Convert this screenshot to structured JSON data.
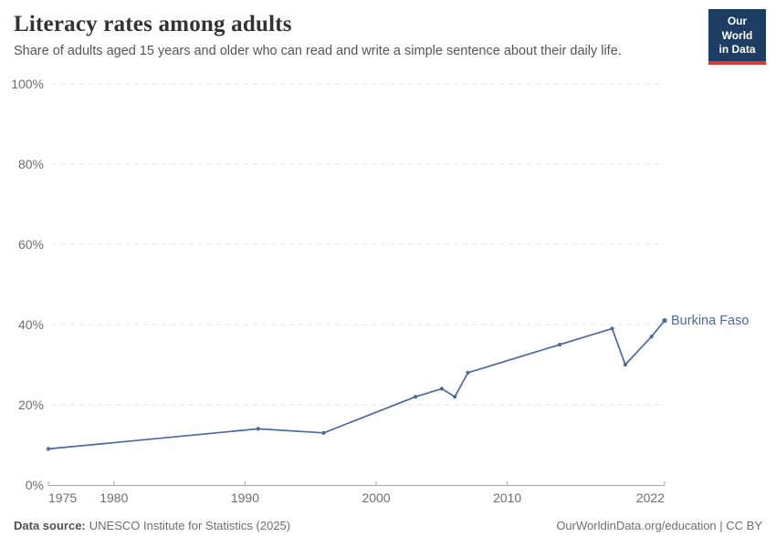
{
  "header": {
    "title": "Literacy rates among adults",
    "subtitle": "Share of adults aged 15 years and older who can read and write a simple sentence about their daily life.",
    "logo": {
      "line1": "Our World",
      "line2": "in Data"
    }
  },
  "chart_data": {
    "type": "line",
    "title": "Literacy rates among adults",
    "xlabel": "",
    "ylabel": "",
    "xlim": [
      1975,
      2022
    ],
    "ylim": [
      0,
      100
    ],
    "x_ticks": [
      1975,
      1980,
      1990,
      2000,
      2010,
      2022
    ],
    "y_ticks": [
      0,
      20,
      40,
      60,
      80,
      100
    ],
    "y_suffix": "%",
    "grid": "horizontal-dashed",
    "legend_position": "end-of-line",
    "series": [
      {
        "name": "Burkina Faso",
        "color": "#4C6A9C",
        "x": [
          1975,
          1991,
          1996,
          2003,
          2005,
          2006,
          2007,
          2014,
          2018,
          2019,
          2021,
          2022
        ],
        "values": [
          9,
          14,
          13,
          22,
          24,
          22,
          28,
          35,
          39,
          30,
          37,
          41
        ]
      }
    ]
  },
  "footer": {
    "source_label": "Data source:",
    "source_text": "UNESCO Institute for Statistics (2025)",
    "credit": "OurWorldinData.org/education | CC BY"
  },
  "colors": {
    "series": "#4C6A9C",
    "logo_bg": "#1d3d63",
    "logo_accent": "#d93a34",
    "grid": "#e3e3e3",
    "axis": "#a6a6a6",
    "tick_label": "#6e6e6e"
  }
}
